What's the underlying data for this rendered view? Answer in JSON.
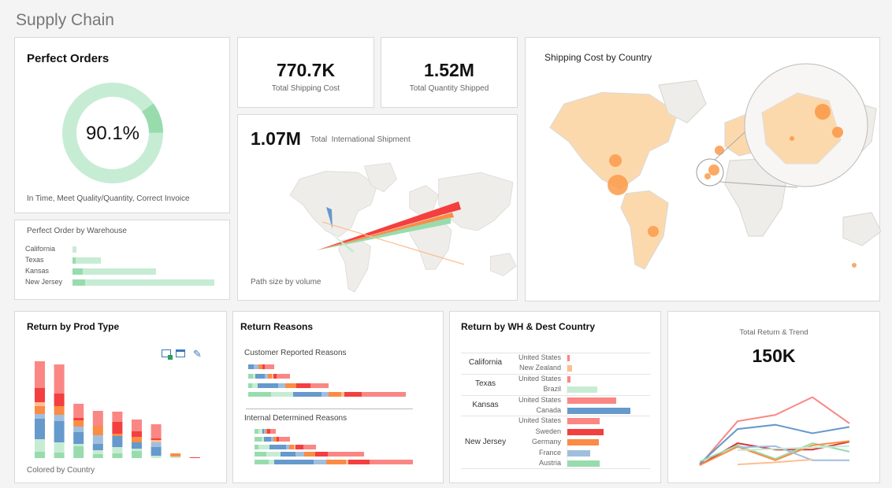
{
  "page_title": "Supply Chain",
  "colors": {
    "green": "#98dcae",
    "lightgreen": "#c7ecd4",
    "blue": "#6699cc",
    "lightblue": "#a0bfdf",
    "orange": "#fb8c45",
    "lightorange": "#fdbf90",
    "red": "#f33f3f",
    "pink": "#fa8784",
    "darkred": "#d43a3a",
    "bubble": "#fb9a4a",
    "land": "#efedea",
    "landHi": "#fcd9ac"
  },
  "perfect_orders": {
    "title": "Perfect Orders",
    "value": "90.1%",
    "percent": 90.1,
    "caption": "In Time, Meet Quality/Quantity, Correct Invoice"
  },
  "warehouse": {
    "title": "Perfect Order by Warehouse",
    "rows": [
      {
        "label": "California",
        "perfect": 0,
        "total": 3
      },
      {
        "label": "Texas",
        "perfect": 2,
        "total": 20
      },
      {
        "label": "Kansas",
        "perfect": 7,
        "total": 59
      },
      {
        "label": "New Jersey",
        "perfect": 9,
        "total": 100
      }
    ]
  },
  "kpi_shipping_cost": {
    "value": "770.7K",
    "label": "Total Shipping Cost"
  },
  "kpi_quantity": {
    "value": "1.52M",
    "label": "Total Quantity Shipped"
  },
  "international": {
    "value": "1.07M",
    "label": "Total  International Shipment",
    "caption": "Path size by volume"
  },
  "shipping_map": {
    "title": "Shipping Cost by Country"
  },
  "prod_type": {
    "title": "Return by Prod Type",
    "caption": "Colored by Country",
    "icons": [
      "export-icon",
      "window-icon",
      "edit-icon"
    ],
    "series_order": [
      "green",
      "lightgreen",
      "blue",
      "lightblue",
      "orange",
      "lightorange",
      "red",
      "pink"
    ],
    "bars": [
      [
        8,
        16,
        26,
        6,
        10,
        5,
        18,
        34
      ],
      [
        7,
        13,
        27,
        8,
        11,
        0,
        16,
        37
      ],
      [
        15,
        3,
        15,
        7,
        8,
        0,
        3,
        18
      ],
      [
        5,
        5,
        8,
        11,
        12,
        0,
        0,
        19
      ],
      [
        6,
        8,
        14,
        0,
        3,
        0,
        15,
        13
      ],
      [
        9,
        3,
        8,
        0,
        7,
        0,
        7,
        15
      ],
      [
        0,
        3,
        11,
        6,
        0,
        3,
        2,
        18
      ],
      [
        0,
        2,
        0,
        0,
        4,
        0,
        0,
        0
      ],
      [
        0,
        0,
        0,
        0,
        0,
        0,
        1,
        0
      ]
    ]
  },
  "return_reasons": {
    "title": "Return Reasons",
    "customer_label": "Customer Reported Reasons",
    "internal_label": "Internal Determined Reasons",
    "series_order": [
      "green",
      "lightgreen",
      "blue",
      "lightblue",
      "orange",
      "lightorange",
      "red",
      "pink"
    ],
    "customer": [
      [
        0,
        0,
        7,
        6,
        5,
        0,
        3,
        12
      ],
      [
        6,
        3,
        12,
        4,
        5,
        2,
        4,
        17
      ],
      [
        5,
        7,
        26,
        9,
        14,
        0,
        18,
        23
      ],
      [
        29,
        28,
        36,
        9,
        16,
        4,
        22,
        56
      ]
    ],
    "internal": [
      [
        5,
        5,
        2,
        2,
        2,
        0,
        4,
        7
      ],
      [
        9,
        3,
        9,
        3,
        4,
        0,
        3,
        14
      ],
      [
        5,
        14,
        21,
        4,
        6,
        2,
        10,
        16
      ],
      [
        15,
        18,
        19,
        11,
        14,
        0,
        16,
        46
      ],
      [
        18,
        7,
        50,
        16,
        25,
        3,
        27,
        55
      ]
    ]
  },
  "wh_dest": {
    "title": "Return by WH & Dest Country",
    "groups": [
      {
        "warehouse": "California",
        "rows": [
          {
            "country": "United States",
            "value": 3,
            "color": "pink"
          },
          {
            "country": "New Zealand",
            "value": 6,
            "color": "lightorange"
          }
        ]
      },
      {
        "warehouse": "Texas",
        "rows": [
          {
            "country": "United States",
            "value": 4,
            "color": "pink"
          },
          {
            "country": "Brazil",
            "value": 38,
            "color": "lightgreen"
          }
        ]
      },
      {
        "warehouse": "Kansas",
        "rows": [
          {
            "country": "United States",
            "value": 62,
            "color": "pink"
          },
          {
            "country": "Canada",
            "value": 80,
            "color": "blue"
          }
        ]
      },
      {
        "warehouse": "New Jersey",
        "rows": [
          {
            "country": "United States",
            "value": 41,
            "color": "pink"
          },
          {
            "country": "Sweden",
            "value": 46,
            "color": "red"
          },
          {
            "country": "Germany",
            "value": 40,
            "color": "orange"
          },
          {
            "country": "France",
            "value": 29,
            "color": "lightblue"
          },
          {
            "country": "Austria",
            "value": 41,
            "color": "green"
          }
        ]
      }
    ]
  },
  "trend": {
    "label": "Total Return & Trend",
    "value": "150K",
    "series": [
      {
        "color": "pink",
        "values": [
          0,
          62,
          71,
          96,
          59
        ]
      },
      {
        "color": "blue",
        "values": [
          2,
          51,
          57,
          45,
          54
        ]
      },
      {
        "color": "darkred",
        "values": [
          0,
          31,
          22,
          22,
          33
        ]
      },
      {
        "color": "green",
        "values": [
          5,
          28,
          9,
          31,
          19
        ]
      },
      {
        "color": "orange",
        "values": [
          0,
          26,
          7,
          28,
          34
        ]
      },
      {
        "color": "lightblue",
        "values": [
          null,
          25,
          27,
          7,
          7
        ]
      },
      {
        "color": "lightgreen",
        "values": [
          null,
          21,
          23,
          25,
          27
        ]
      },
      {
        "color": "lightorange",
        "values": [
          null,
          1,
          4,
          8,
          null
        ]
      }
    ]
  }
}
